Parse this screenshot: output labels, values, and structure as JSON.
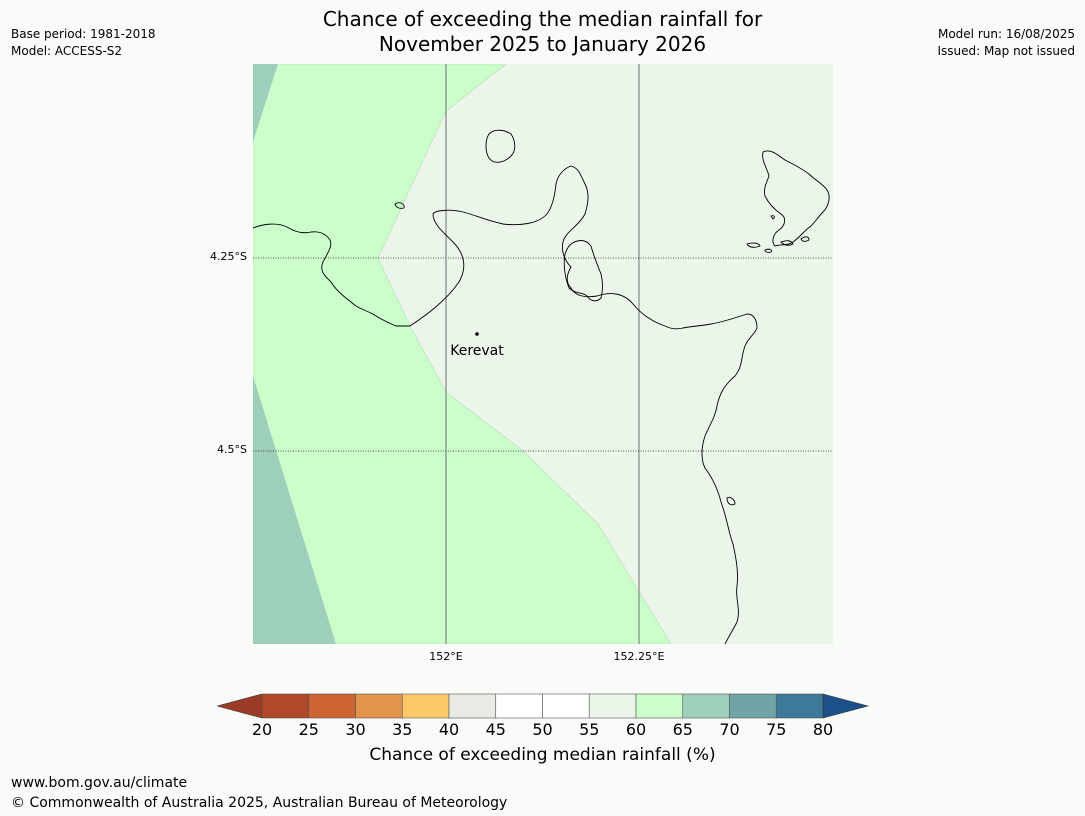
{
  "header": {
    "title_line1": "Chance of exceeding the median rainfall for",
    "title_line2": "November 2025 to January 2026",
    "base_period": "Base period: 1981-2018",
    "model": "Model: ACCESS-S2",
    "model_run": "Model run: 16/08/2025",
    "issued": "Issued: Map not issued"
  },
  "map": {
    "lat_labels": [
      "4.25°S",
      "4.5°S"
    ],
    "lon_labels": [
      "152°E",
      "152.25°E"
    ],
    "town": "Kerevat",
    "colors": {
      "land_outline": "#000000",
      "band_55_60": "#ebf5ea",
      "band_60_65": "#ccfecb",
      "band_65_70": "#9ecfbb",
      "grid": "#6e6e6e"
    }
  },
  "legend": {
    "label": "Chance of exceeding median rainfall (%)",
    "ticks": [
      "20",
      "25",
      "30",
      "35",
      "40",
      "45",
      "50",
      "55",
      "60",
      "65",
      "70",
      "75",
      "80"
    ],
    "colors": [
      "#b0482a",
      "#cd6434",
      "#e3944c",
      "#fdc968",
      "#e8ebe4",
      "#ffffff",
      "#ffffff",
      "#ebf5ea",
      "#ccfecb",
      "#9ecfbb",
      "#70a4a6",
      "#3f7999"
    ],
    "under_color": "#9c3b26",
    "over_color": "#1c5089"
  },
  "footer": {
    "url": "www.bom.gov.au/climate",
    "copyright": "© Commonwealth of Australia 2025, Australian Bureau of Meteorology"
  }
}
